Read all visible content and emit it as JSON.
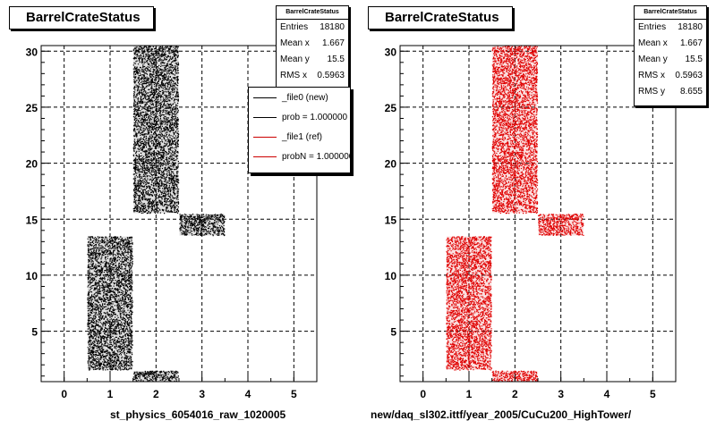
{
  "panels": [
    {
      "title": "BarrelCrateStatus",
      "stats": {
        "header": "BarrelCrateStatus",
        "rows": [
          {
            "label": "Entries",
            "value": "18180"
          },
          {
            "label": "Mean x",
            "value": "1.667"
          },
          {
            "label": "Mean y",
            "value": "15.5"
          },
          {
            "label": "RMS x",
            "value": "0.5963"
          }
        ]
      },
      "legend": [
        {
          "label": "_file0 (new)",
          "color": "#000000"
        },
        {
          "label": "prob = 1.000000",
          "color": "#000000"
        },
        {
          "label": "_file1 (ref)",
          "color": "#cc0000"
        },
        {
          "label": "probN = 1.000000",
          "color": "#cc0000"
        }
      ],
      "xtitle": "st_physics_6054016_raw_1020005"
    },
    {
      "title": "BarrelCrateStatus",
      "stats": {
        "header": "BarrelCrateStatus",
        "rows": [
          {
            "label": "Entries",
            "value": "18180"
          },
          {
            "label": "Mean x",
            "value": "1.667"
          },
          {
            "label": "Mean y",
            "value": "15.5"
          },
          {
            "label": "RMS x",
            "value": "0.5963"
          },
          {
            "label": "RMS y",
            "value": "8.655"
          }
        ]
      },
      "xtitle": "new/daq_sl302.ittf/year_2005/CuCu200_HighTower/"
    }
  ],
  "chart_data": [
    {
      "type": "scatter",
      "title": "BarrelCrateStatus",
      "xlabel": "st_physics_6054016_raw_1020005",
      "ylabel": "",
      "xlim": [
        -0.5,
        5.5
      ],
      "ylim": [
        0.5,
        30.5
      ],
      "xticks": [
        0,
        1,
        2,
        3,
        4,
        5
      ],
      "yticks": [
        5,
        10,
        15,
        20,
        25,
        30
      ],
      "grid": true,
      "series": [
        {
          "name": "_file0 (new)",
          "color": "#000000",
          "regions": [
            {
              "x": [
                0.5,
                1.5
              ],
              "y": [
                1.5,
                13.5
              ]
            },
            {
              "x": [
                1.5,
                2.5
              ],
              "y": [
                0.5,
                1.5
              ]
            },
            {
              "x": [
                1.5,
                2.5
              ],
              "y": [
                15.5,
                30.5
              ]
            },
            {
              "x": [
                2.5,
                3.5
              ],
              "y": [
                13.5,
                15.5
              ]
            }
          ]
        }
      ]
    },
    {
      "type": "scatter",
      "title": "BarrelCrateStatus",
      "xlabel": "new/daq_sl302.ittf/year_2005/CuCu200_HighTower/",
      "ylabel": "",
      "xlim": [
        -0.5,
        5.5
      ],
      "ylim": [
        0.5,
        30.5
      ],
      "xticks": [
        0,
        1,
        2,
        3,
        4,
        5
      ],
      "yticks": [
        5,
        10,
        15,
        20,
        25,
        30
      ],
      "grid": true,
      "series": [
        {
          "name": "_file1 (ref)",
          "color": "#e00000",
          "regions": [
            {
              "x": [
                0.5,
                1.5
              ],
              "y": [
                1.5,
                13.5
              ]
            },
            {
              "x": [
                1.5,
                2.5
              ],
              "y": [
                0.5,
                1.5
              ]
            },
            {
              "x": [
                1.5,
                2.5
              ],
              "y": [
                15.5,
                30.5
              ]
            },
            {
              "x": [
                2.5,
                3.5
              ],
              "y": [
                13.5,
                15.5
              ]
            }
          ]
        }
      ]
    }
  ]
}
